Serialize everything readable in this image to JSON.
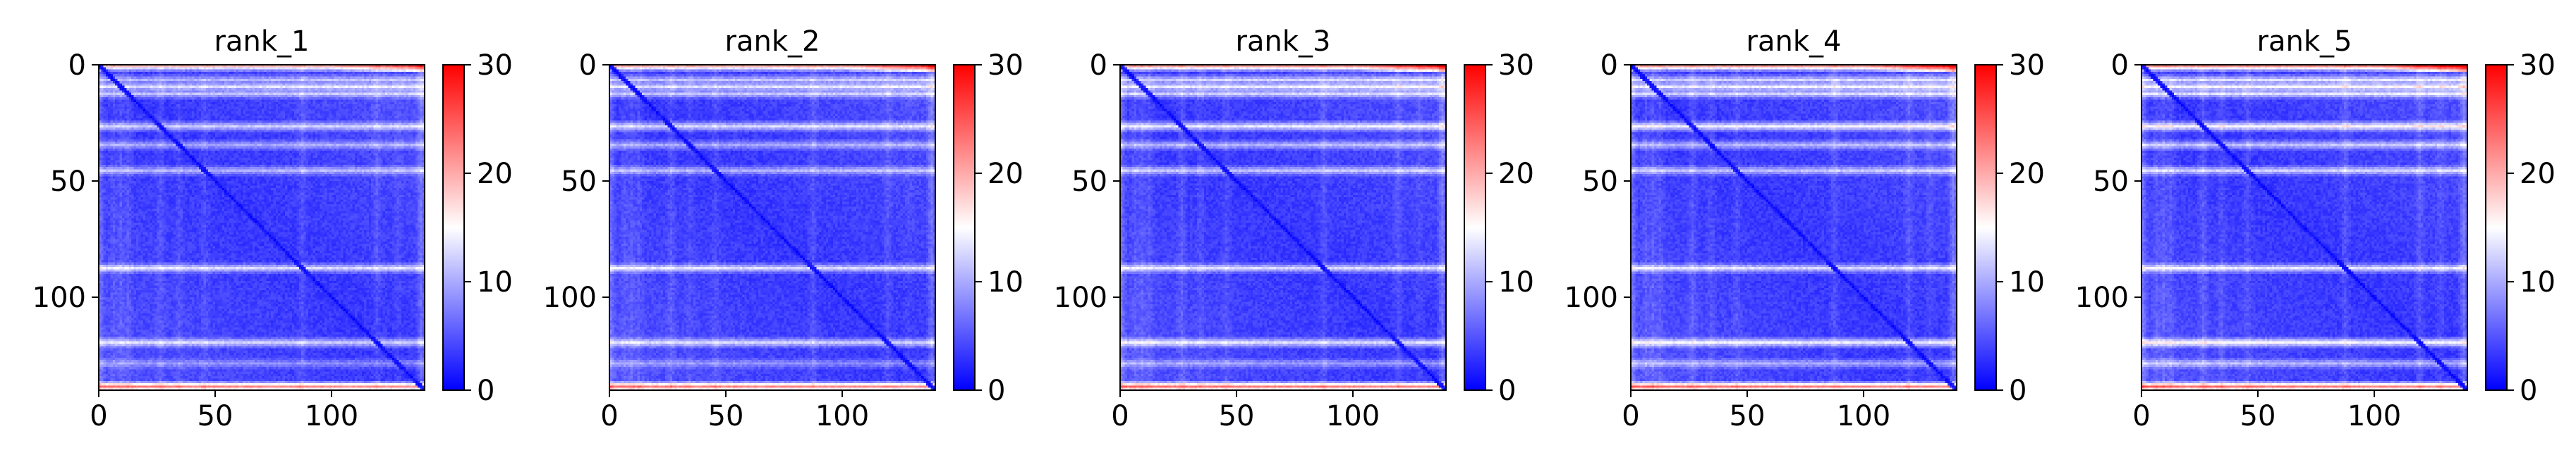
{
  "chart_data": {
    "type": "heatmap",
    "grid": false,
    "colormap": [
      "#0000ff",
      "#ffffff",
      "#ff0000"
    ],
    "panels": [
      {
        "title": "rank_1",
        "xticks": [
          0,
          50,
          100
        ],
        "yticks": [
          0,
          50,
          100
        ],
        "colorbar_ticks": [
          0,
          10,
          20,
          30
        ],
        "xlim": [
          0,
          140
        ],
        "ylim": [
          140,
          0
        ],
        "clim": [
          0,
          30
        ],
        "high_rows": [
          0,
          6,
          9,
          12,
          26,
          34,
          45,
          87,
          119,
          128,
          138
        ],
        "high_row_values": [
          24,
          14,
          17,
          15,
          16,
          13,
          14,
          17,
          16,
          11,
          28
        ]
      },
      {
        "title": "rank_2",
        "xticks": [
          0,
          50,
          100
        ],
        "yticks": [
          0,
          50,
          100
        ],
        "colorbar_ticks": [
          0,
          10,
          20,
          30
        ],
        "xlim": [
          0,
          140
        ],
        "ylim": [
          140,
          0
        ],
        "clim": [
          0,
          30
        ],
        "high_rows": [
          0,
          6,
          9,
          12,
          26,
          34,
          45,
          87,
          119,
          128,
          138
        ],
        "high_row_values": [
          25,
          15,
          17,
          15,
          17,
          13,
          14,
          17,
          16,
          11,
          28
        ]
      },
      {
        "title": "rank_3",
        "xticks": [
          0,
          50,
          100
        ],
        "yticks": [
          0,
          50,
          100
        ],
        "colorbar_ticks": [
          0,
          10,
          20,
          30
        ],
        "xlim": [
          0,
          140
        ],
        "ylim": [
          140,
          0
        ],
        "clim": [
          0,
          30
        ],
        "high_rows": [
          0,
          6,
          9,
          12,
          26,
          34,
          45,
          87,
          119,
          128,
          138
        ],
        "high_row_values": [
          26,
          16,
          18,
          16,
          18,
          14,
          15,
          17,
          17,
          12,
          29
        ]
      },
      {
        "title": "rank_4",
        "xticks": [
          0,
          50,
          100
        ],
        "yticks": [
          0,
          50,
          100
        ],
        "colorbar_ticks": [
          0,
          10,
          20,
          30
        ],
        "xlim": [
          0,
          140
        ],
        "ylim": [
          140,
          0
        ],
        "clim": [
          0,
          30
        ],
        "high_rows": [
          0,
          6,
          9,
          12,
          26,
          34,
          45,
          87,
          119,
          128,
          138
        ],
        "high_row_values": [
          26,
          16,
          18,
          16,
          19,
          14,
          15,
          17,
          18,
          13,
          29
        ]
      },
      {
        "title": "rank_5",
        "xticks": [
          0,
          50,
          100
        ],
        "yticks": [
          0,
          50,
          100
        ],
        "colorbar_ticks": [
          0,
          10,
          20,
          30
        ],
        "xlim": [
          0,
          140
        ],
        "ylim": [
          140,
          0
        ],
        "clim": [
          0,
          30
        ],
        "high_rows": [
          0,
          6,
          9,
          12,
          26,
          34,
          45,
          87,
          119,
          128,
          138
        ],
        "high_row_values": [
          27,
          17,
          19,
          17,
          20,
          15,
          16,
          18,
          19,
          14,
          29
        ]
      }
    ]
  }
}
